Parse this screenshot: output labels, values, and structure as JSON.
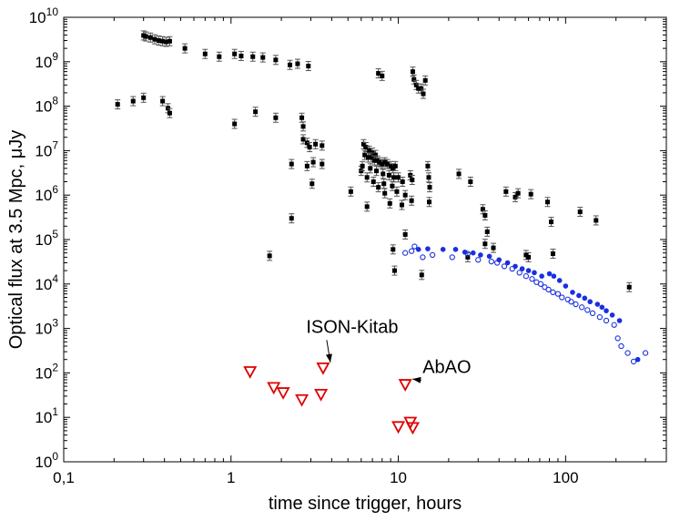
{
  "chart_data": {
    "type": "scatter",
    "title": "",
    "xlabel": "time since trigger, hours",
    "ylabel": "Optical flux at 3.5 Mpc, μJy",
    "x_scale": "log",
    "y_scale": "log",
    "xlim": [
      0.1,
      400
    ],
    "ylim": [
      1,
      10000000000
    ],
    "grid": false,
    "legend": "none",
    "x_ticks": [
      {
        "value": 0.1,
        "label": "0,1"
      },
      {
        "value": 1,
        "label": "1"
      },
      {
        "value": 10,
        "label": "10"
      },
      {
        "value": 100,
        "label": "100"
      }
    ],
    "y_ticks": [
      {
        "value": 1,
        "base": "10",
        "exp": "0"
      },
      {
        "value": 10,
        "base": "10",
        "exp": "1"
      },
      {
        "value": 100,
        "base": "10",
        "exp": "2"
      },
      {
        "value": 1000,
        "base": "10",
        "exp": "3"
      },
      {
        "value": 10000,
        "base": "10",
        "exp": "4"
      },
      {
        "value": 100000,
        "base": "10",
        "exp": "5"
      },
      {
        "value": 1000000,
        "base": "10",
        "exp": "6"
      },
      {
        "value": 10000000,
        "base": "10",
        "exp": "7"
      },
      {
        "value": 100000000,
        "base": "10",
        "exp": "8"
      },
      {
        "value": 1000000000,
        "base": "10",
        "exp": "9"
      },
      {
        "value": 10000000000,
        "base": "10",
        "exp": "10"
      }
    ],
    "colors": {
      "black": "#000000",
      "blue": "#1a2fe0",
      "red": "#e00000"
    },
    "series": [
      {
        "marker": "square-errorbar",
        "color": "#000000",
        "points": [
          [
            0.3,
            3900000000.0
          ],
          [
            0.31,
            3700000000.0
          ],
          [
            0.33,
            3500000000.0
          ],
          [
            0.35,
            3200000000.0
          ],
          [
            0.37,
            3000000000.0
          ],
          [
            0.39,
            2900000000.0
          ],
          [
            0.41,
            2800000000.0
          ],
          [
            0.43,
            2900000000.0
          ],
          [
            0.53,
            2000000000.0
          ],
          [
            0.7,
            1500000000.0
          ],
          [
            0.85,
            1300000000.0
          ],
          [
            1.05,
            1500000000.0
          ],
          [
            1.15,
            1350000000.0
          ],
          [
            1.35,
            1300000000.0
          ],
          [
            1.55,
            1250000000.0
          ],
          [
            1.85,
            1100000000.0
          ],
          [
            2.25,
            850000000.0
          ],
          [
            2.5,
            900000000.0
          ],
          [
            2.9,
            800000000.0
          ],
          [
            0.21,
            110000000.0
          ],
          [
            0.26,
            130000000.0
          ],
          [
            0.3,
            155000000.0
          ],
          [
            0.39,
            130000000.0
          ],
          [
            0.42,
            90000000.0
          ],
          [
            0.43,
            70000000.0
          ],
          [
            1.05,
            40000000.0
          ],
          [
            1.4,
            75000000.0
          ],
          [
            1.85,
            55000000.0
          ],
          [
            2.65,
            55000000.0
          ],
          [
            2.7,
            35000000.0
          ],
          [
            2.7,
            18000000.0
          ],
          [
            2.85,
            15000000.0
          ],
          [
            2.95,
            12000000.0
          ],
          [
            3.2,
            14000000.0
          ],
          [
            3.5,
            13000000.0
          ],
          [
            3.1,
            5500000.0
          ],
          [
            2.3,
            5000000.0
          ],
          [
            2.85,
            4500000.0
          ],
          [
            3.5,
            5000000.0
          ],
          [
            3.05,
            1800000.0
          ],
          [
            2.3,
            300000.0
          ],
          [
            1.7,
            43000.0
          ],
          [
            7.6,
            550000000.0
          ],
          [
            8.0,
            480000000.0
          ],
          [
            12.2,
            600000000.0
          ],
          [
            12.4,
            400000000.0
          ],
          [
            12.8,
            300000000.0
          ],
          [
            13.2,
            250000000.0
          ],
          [
            13.7,
            250000000.0
          ],
          [
            14.1,
            190000000.0
          ],
          [
            14.5,
            380000000.0
          ],
          [
            6.2,
            14000000.0
          ],
          [
            6.4,
            12000000.0
          ],
          [
            6.7,
            10000000.0
          ],
          [
            7.0,
            9000000.0
          ],
          [
            7.3,
            8000000.0
          ],
          [
            6.3,
            8000000.0
          ],
          [
            6.6,
            7000000.0
          ],
          [
            6.9,
            7000000.0
          ],
          [
            7.2,
            6000000.0
          ],
          [
            7.5,
            6000000.0
          ],
          [
            7.7,
            5500000.0
          ],
          [
            8.0,
            5000000.0
          ],
          [
            8.3,
            5500000.0
          ],
          [
            8.6,
            5000000.0
          ],
          [
            9.0,
            4500000.0
          ],
          [
            9.3,
            4000000.0
          ],
          [
            9.6,
            4500000.0
          ],
          [
            6.0,
            3500000.0
          ],
          [
            6.8,
            4000000.0
          ],
          [
            7.4,
            3500000.0
          ],
          [
            8.1,
            3000000.0
          ],
          [
            8.8,
            2800000.0
          ],
          [
            9.4,
            2500000.0
          ],
          [
            10.0,
            2500000.0
          ],
          [
            7.1,
            2000000.0
          ],
          [
            8.2,
            1800000.0
          ],
          [
            9.2,
            1600000.0
          ],
          [
            5.2,
            1200000.0
          ],
          [
            6.5,
            2500000.0
          ],
          [
            6.1,
            4500000.0
          ],
          [
            10.6,
            2000000.0
          ],
          [
            11.8,
            2800000.0
          ],
          [
            12.1,
            2200000.0
          ],
          [
            15.0,
            4500000.0
          ],
          [
            15.2,
            2500000.0
          ],
          [
            15.4,
            1500000.0
          ],
          [
            11.0,
            1000000.0
          ],
          [
            9.8,
            1200000.0
          ],
          [
            8.3,
            1100000.0
          ],
          [
            7.6,
            1500000.0
          ],
          [
            10.5,
            600000.0
          ],
          [
            12.0,
            750000.0
          ],
          [
            15.3,
            700000.0
          ],
          [
            6.5,
            550000.0
          ],
          [
            8.9,
            650000.0
          ],
          [
            11.0,
            130000.0
          ],
          [
            9.3,
            60000.0
          ],
          [
            9.5,
            20000.0
          ],
          [
            13.8,
            16000.0
          ],
          [
            23.0,
            3000000.0
          ],
          [
            27.0,
            2000000.0
          ],
          [
            32.0,
            480000.0
          ],
          [
            33.0,
            350000.0
          ],
          [
            34.0,
            150000.0
          ],
          [
            37.0,
            65000.0
          ],
          [
            33.0,
            80000.0
          ],
          [
            26.0,
            40000.0
          ],
          [
            44.0,
            1200000.0
          ],
          [
            50.0,
            900000.0
          ],
          [
            52.0,
            1100000.0
          ],
          [
            62.0,
            1050000.0
          ],
          [
            78.0,
            700000.0
          ],
          [
            82.0,
            250000.0
          ],
          [
            122.0,
            420000.0
          ],
          [
            152.0,
            270000.0
          ],
          [
            240.0,
            8500.0
          ],
          [
            58.0,
            45000.0
          ],
          [
            60.0,
            40000.0
          ],
          [
            84.0,
            48000.0
          ]
        ]
      },
      {
        "marker": "filled-circle",
        "color": "#1a2fe0",
        "points": [
          [
            13.2,
            60000.0
          ],
          [
            15.0,
            62000.0
          ],
          [
            18.5,
            60000.0
          ],
          [
            22.0,
            60000.0
          ],
          [
            25.0,
            52000.0
          ],
          [
            28.0,
            50000.0
          ],
          [
            31.0,
            45000.0
          ],
          [
            35.0,
            42000.0
          ],
          [
            40.0,
            35000.0
          ],
          [
            45.0,
            30000.0
          ],
          [
            50.0,
            25000.0
          ],
          [
            55.0,
            22000.0
          ],
          [
            60.0,
            20000.0
          ],
          [
            65.0,
            18000.0
          ],
          [
            72.0,
            15000.0
          ],
          [
            80.0,
            17000.0
          ],
          [
            85.0,
            15000.0
          ],
          [
            92.0,
            12000.0
          ],
          [
            100.0,
            9000.0
          ],
          [
            110.0,
            6500.0
          ],
          [
            120.0,
            5500.0
          ],
          [
            130.0,
            4800.0
          ],
          [
            140.0,
            4000.0
          ],
          [
            155.0,
            3500.0
          ],
          [
            165.0,
            3000.0
          ],
          [
            175.0,
            2500.0
          ],
          [
            190.0,
            2000.0
          ],
          [
            210.0,
            1500.0
          ],
          [
            270.0,
            200.0
          ]
        ]
      },
      {
        "marker": "open-circle",
        "color": "#1a2fe0",
        "points": [
          [
            11.0,
            50000.0
          ],
          [
            12.0,
            55000.0
          ],
          [
            12.5,
            70000.0
          ],
          [
            14.0,
            40000.0
          ],
          [
            16.0,
            45000.0
          ],
          [
            21.0,
            40000.0
          ],
          [
            26.0,
            48000.0
          ],
          [
            30.0,
            35000.0
          ],
          [
            36.0,
            32000.0
          ],
          [
            39.0,
            30000.0
          ],
          [
            43.0,
            25000.0
          ],
          [
            48.0,
            22000.0
          ],
          [
            53.0,
            18000.0
          ],
          [
            58.0,
            15000.0
          ],
          [
            63.0,
            13000.0
          ],
          [
            67.0,
            11000.0
          ],
          [
            71.0,
            10000.0
          ],
          [
            75.0,
            8500.0
          ],
          [
            79.0,
            7500.0
          ],
          [
            84.0,
            6500.0
          ],
          [
            90.0,
            6000.0
          ],
          [
            95.0,
            5000.0
          ],
          [
            103.0,
            4500.0
          ],
          [
            108.0,
            4000.0
          ],
          [
            115.0,
            3500.0
          ],
          [
            125.0,
            3000.0
          ],
          [
            135.0,
            2600.0
          ],
          [
            145.0,
            2200.0
          ],
          [
            160.0,
            1800.0
          ],
          [
            175.0,
            1500.0
          ],
          [
            195.0,
            1200.0
          ],
          [
            205.0,
            600.0
          ],
          [
            215.0,
            400.0
          ],
          [
            235.0,
            280.0
          ],
          [
            255.0,
            180.0
          ],
          [
            300.0,
            280.0
          ]
        ]
      },
      {
        "marker": "open-triangle-down",
        "color": "#e00000",
        "points": [
          [
            1.3,
            107
          ],
          [
            1.8,
            47
          ],
          [
            2.05,
            36
          ],
          [
            2.65,
            25
          ],
          [
            3.45,
            33
          ],
          [
            3.55,
            130
          ],
          [
            10.0,
            6.2
          ],
          [
            11.0,
            55
          ],
          [
            11.8,
            7.8
          ],
          [
            12.2,
            5.9
          ]
        ]
      }
    ],
    "annotations": [
      {
        "text": "ISON-Kitab",
        "x": 3.55,
        "y": 130,
        "text_x": 5.3,
        "text_y": 800
      },
      {
        "text": "AbAO",
        "x": 11.0,
        "y": 55,
        "text_x": 19.5,
        "text_y": 100
      }
    ]
  }
}
